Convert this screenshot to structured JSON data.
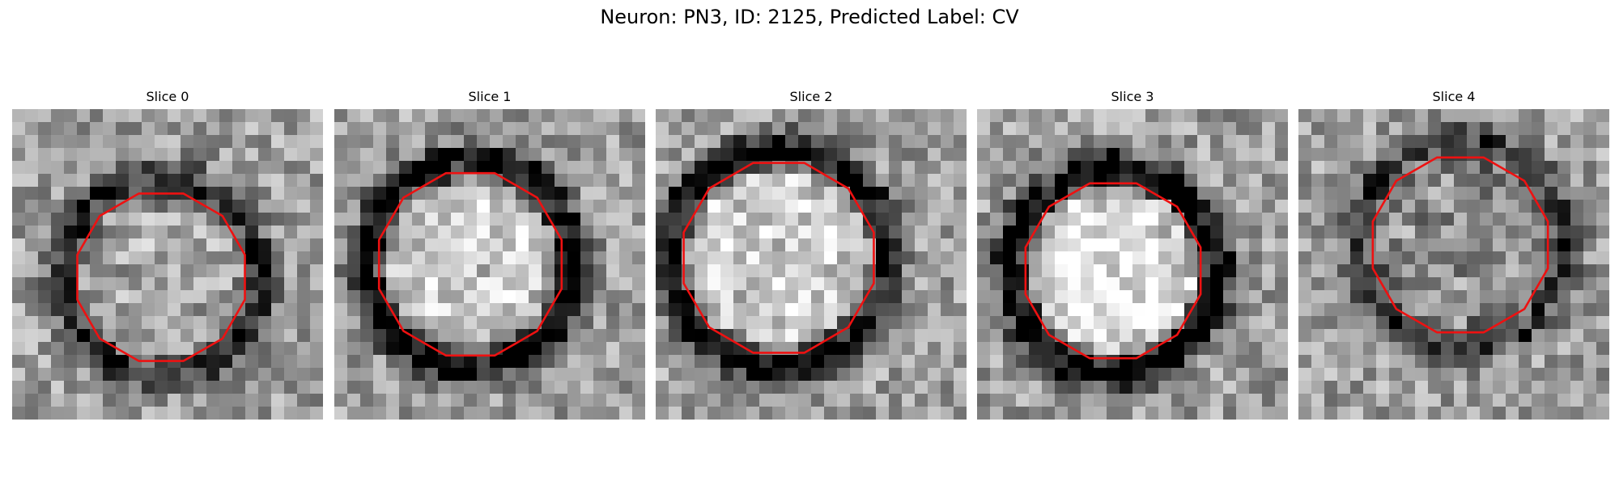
{
  "figure": {
    "title": "Neuron: PN3, ID: 2125, Predicted Label: CV"
  },
  "outline_color": "#ee1111",
  "panels": [
    {
      "title": "Slice 0",
      "ring_darkness": 0.55,
      "inner_brightness": 0.05,
      "center": [
        11.5,
        13.0
      ],
      "radius": 6.4,
      "ring_radius": 7.6,
      "outline_center": [
        11.5,
        13.0
      ],
      "outline_radius": 6.7
    },
    {
      "title": "Slice 1",
      "ring_darkness": 0.75,
      "inner_brightness": 0.18,
      "center": [
        10.5,
        12.0
      ],
      "radius": 6.8,
      "ring_radius": 8.0,
      "outline_center": [
        10.5,
        12.0
      ],
      "outline_radius": 7.3
    },
    {
      "title": "Slice 2",
      "ring_darkness": 0.7,
      "inner_brightness": 0.2,
      "center": [
        9.5,
        11.5
      ],
      "radius": 7.1,
      "ring_radius": 8.4,
      "outline_center": [
        9.5,
        11.5
      ],
      "outline_radius": 7.6
    },
    {
      "title": "Slice 3",
      "ring_darkness": 0.8,
      "inner_brightness": 0.25,
      "center": [
        10.5,
        12.5
      ],
      "radius": 6.6,
      "ring_radius": 7.9,
      "outline_center": [
        10.5,
        12.5
      ],
      "outline_radius": 7.0
    },
    {
      "title": "Slice 4",
      "ring_darkness": 0.45,
      "inner_brightness": -0.05,
      "center": [
        12.5,
        10.5
      ],
      "radius": 6.7,
      "ring_radius": 8.0,
      "outline_center": [
        12.5,
        10.5
      ],
      "outline_radius": 7.0
    }
  ]
}
